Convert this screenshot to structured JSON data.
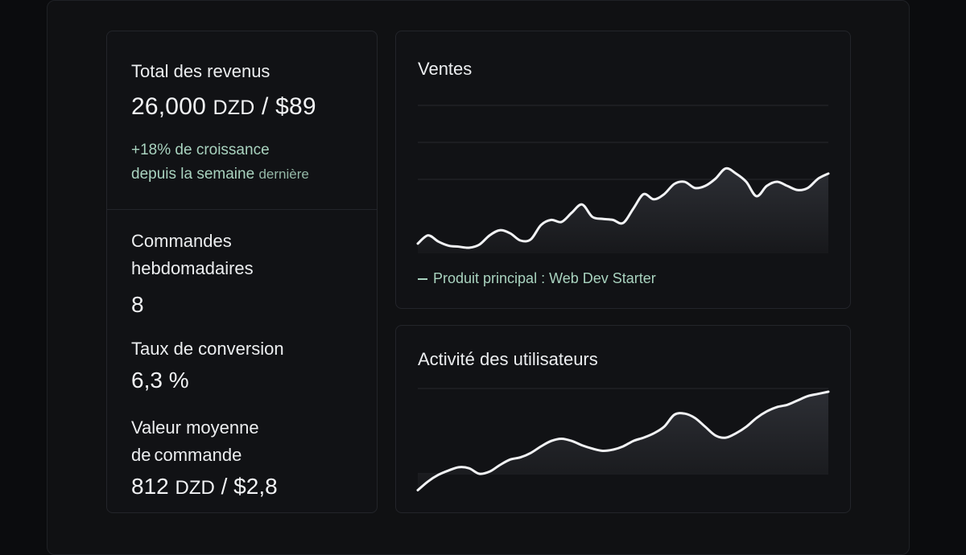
{
  "revenue": {
    "label": "Total des revenus",
    "amount": "26,000",
    "currency": "DZD",
    "separator": " / ",
    "usd": "$89",
    "growth_line1": "+18% de croissance",
    "growth_line2_a": "depuis la semaine",
    "growth_line2_b": "dernière"
  },
  "stats": {
    "orders_label_line1": "Commandes",
    "orders_label_line2": "hebdomadaires",
    "orders_value": "8",
    "conversion_label": "Taux de conversion",
    "conversion_value": "6,3 %",
    "aov_label_line1": "Valeur moyenne",
    "aov_label_line2_a": "de",
    "aov_label_line2_b": "commande",
    "aov_amount": "812",
    "aov_currency": "DZD",
    "aov_separator": " / ",
    "aov_usd": "$2,8"
  },
  "sales_card": {
    "title": "Ventes",
    "legend": "Produit principal : Web Dev Starter"
  },
  "activity_card": {
    "title": "Activité des utilisateurs"
  },
  "colors": {
    "background": "#0b0c0e",
    "card": "#111215",
    "accent_green": "#a9d3bf",
    "line": "#f2f3f5"
  },
  "chart_data": [
    {
      "type": "area",
      "title": "Ventes",
      "grid": true,
      "legend_position": "bottom-left",
      "ylim": [
        0,
        100
      ],
      "x": [
        0,
        1,
        2,
        3,
        4,
        5,
        6,
        7,
        8,
        9,
        10,
        11,
        12,
        13,
        14,
        15,
        16,
        17,
        18,
        19,
        20,
        21,
        22,
        23,
        24,
        25,
        26,
        27,
        28,
        29,
        30,
        31,
        32,
        33,
        34,
        35,
        36,
        37,
        38,
        39,
        40
      ],
      "series": [
        {
          "name": "Produit principal : Web Dev Starter",
          "values": [
            22,
            30,
            24,
            20,
            19,
            18,
            21,
            30,
            35,
            32,
            25,
            26,
            40,
            45,
            43,
            52,
            60,
            48,
            46,
            45,
            42,
            56,
            70,
            65,
            70,
            80,
            82,
            76,
            78,
            85,
            95,
            90,
            82,
            68,
            78,
            82,
            78,
            74,
            76,
            85,
            90
          ]
        }
      ]
    },
    {
      "type": "area",
      "title": "Activité des utilisateurs",
      "grid": true,
      "ylim": [
        0,
        100
      ],
      "x": [
        0,
        1,
        2,
        3,
        4,
        5,
        6,
        7,
        8,
        9,
        10,
        11,
        12,
        13,
        14,
        15,
        16,
        17,
        18,
        19,
        20,
        21,
        22,
        23,
        24,
        25,
        26,
        27,
        28,
        29,
        30,
        31,
        32,
        33,
        34,
        35,
        36,
        37,
        38,
        39,
        40
      ],
      "series": [
        {
          "values": [
            10,
            18,
            24,
            28,
            31,
            30,
            25,
            27,
            33,
            38,
            40,
            44,
            50,
            55,
            57,
            55,
            51,
            48,
            46,
            47,
            50,
            55,
            58,
            62,
            68,
            79,
            80,
            76,
            68,
            60,
            58,
            62,
            68,
            76,
            82,
            86,
            88,
            92,
            96,
            98,
            100
          ]
        }
      ]
    }
  ]
}
